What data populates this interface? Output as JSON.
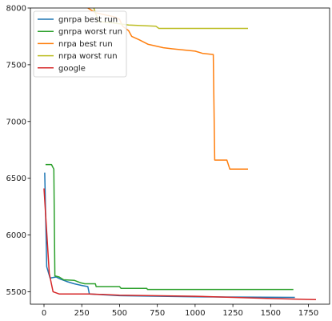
{
  "chart_data": {
    "type": "line",
    "title": "",
    "xlabel": "",
    "ylabel": "",
    "xlim": [
      -90,
      1890
    ],
    "ylim": [
      5390,
      8000
    ],
    "xticks": [
      0,
      250,
      500,
      750,
      1000,
      1250,
      1500,
      1750
    ],
    "yticks": [
      5500,
      6000,
      6500,
      7000,
      7500,
      8000
    ],
    "legend_position": "top-left",
    "grid": false,
    "series": [
      {
        "name": "gnrpa best run",
        "color": "#1f77b4",
        "points": [
          [
            5,
            6550
          ],
          [
            18,
            5720
          ],
          [
            40,
            5620
          ],
          [
            80,
            5630
          ],
          [
            110,
            5610
          ],
          [
            150,
            5590
          ],
          [
            200,
            5570
          ],
          [
            250,
            5555
          ],
          [
            290,
            5545
          ],
          [
            300,
            5480
          ],
          [
            500,
            5465
          ],
          [
            1000,
            5455
          ],
          [
            1660,
            5450
          ]
        ]
      },
      {
        "name": "gnrpa worst run",
        "color": "#2ca02c",
        "points": [
          [
            10,
            6620
          ],
          [
            50,
            6620
          ],
          [
            65,
            6580
          ],
          [
            72,
            5640
          ],
          [
            100,
            5630
          ],
          [
            130,
            5605
          ],
          [
            200,
            5600
          ],
          [
            240,
            5580
          ],
          [
            270,
            5570
          ],
          [
            340,
            5570
          ],
          [
            345,
            5545
          ],
          [
            500,
            5545
          ],
          [
            510,
            5530
          ],
          [
            680,
            5530
          ],
          [
            685,
            5520
          ],
          [
            1650,
            5520
          ]
        ]
      },
      {
        "name": "nrpa best run",
        "color": "#ff7f0e",
        "points": [
          [
            290,
            8000
          ],
          [
            340,
            7960
          ],
          [
            400,
            7940
          ],
          [
            440,
            7930
          ],
          [
            470,
            7920
          ],
          [
            500,
            7900
          ],
          [
            520,
            7840
          ],
          [
            560,
            7800
          ],
          [
            580,
            7750
          ],
          [
            630,
            7720
          ],
          [
            690,
            7680
          ],
          [
            790,
            7650
          ],
          [
            850,
            7640
          ],
          [
            1000,
            7620
          ],
          [
            1050,
            7600
          ],
          [
            1120,
            7590
          ],
          [
            1130,
            6660
          ],
          [
            1210,
            6660
          ],
          [
            1230,
            6580
          ],
          [
            1350,
            6580
          ]
        ]
      },
      {
        "name": "nrpa worst run",
        "color": "#bcbd22",
        "points": [
          [
            330,
            8000
          ],
          [
            360,
            7880
          ],
          [
            450,
            7870
          ],
          [
            500,
            7860
          ],
          [
            560,
            7850
          ],
          [
            740,
            7840
          ],
          [
            760,
            7820
          ],
          [
            1350,
            7820
          ]
        ]
      },
      {
        "name": "google",
        "color": "#d62728",
        "points": [
          [
            0,
            6410
          ],
          [
            35,
            5660
          ],
          [
            60,
            5500
          ],
          [
            100,
            5480
          ],
          [
            200,
            5480
          ],
          [
            300,
            5480
          ],
          [
            500,
            5470
          ],
          [
            1000,
            5460
          ],
          [
            1500,
            5440
          ],
          [
            1800,
            5430
          ]
        ]
      }
    ]
  }
}
